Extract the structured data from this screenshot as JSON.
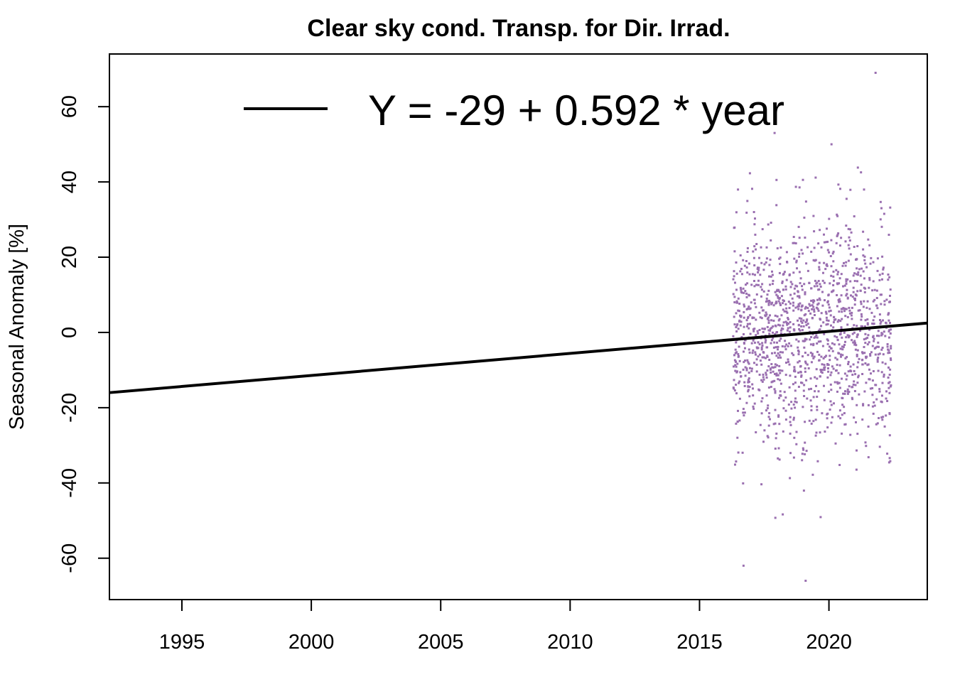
{
  "chart_data": {
    "type": "scatter",
    "title": "Clear sky cond. Transp. for Dir. Irrad.",
    "xlabel": "",
    "ylabel": "Seasonal Anomaly [%]",
    "xlim": [
      1992.2,
      2023.8
    ],
    "ylim": [
      -71,
      74
    ],
    "x_ticks": [
      1995,
      2000,
      2005,
      2010,
      2015,
      2020
    ],
    "y_ticks": [
      -60,
      -40,
      -20,
      0,
      20,
      40,
      60
    ],
    "point_color": "#9a6fb0",
    "line_color": "#000000",
    "grid": false,
    "legend": {
      "position": "top",
      "entries": [
        {
          "label": "Y = -29 + 0.592 * year"
        }
      ]
    },
    "trend": {
      "x": [
        1992.2,
        2023.8
      ],
      "y": [
        -16.0,
        2.5
      ]
    },
    "scatter": {
      "x_range": [
        2016.3,
        2022.4
      ],
      "point_count": 1400,
      "distribution": "approximately normal, mean about 0, sd about 15",
      "extremes": [
        [
          2021.8,
          69
        ],
        [
          2019.1,
          -66
        ],
        [
          2016.7,
          -62
        ],
        [
          2017.9,
          53
        ],
        [
          2020.1,
          50
        ]
      ]
    }
  }
}
